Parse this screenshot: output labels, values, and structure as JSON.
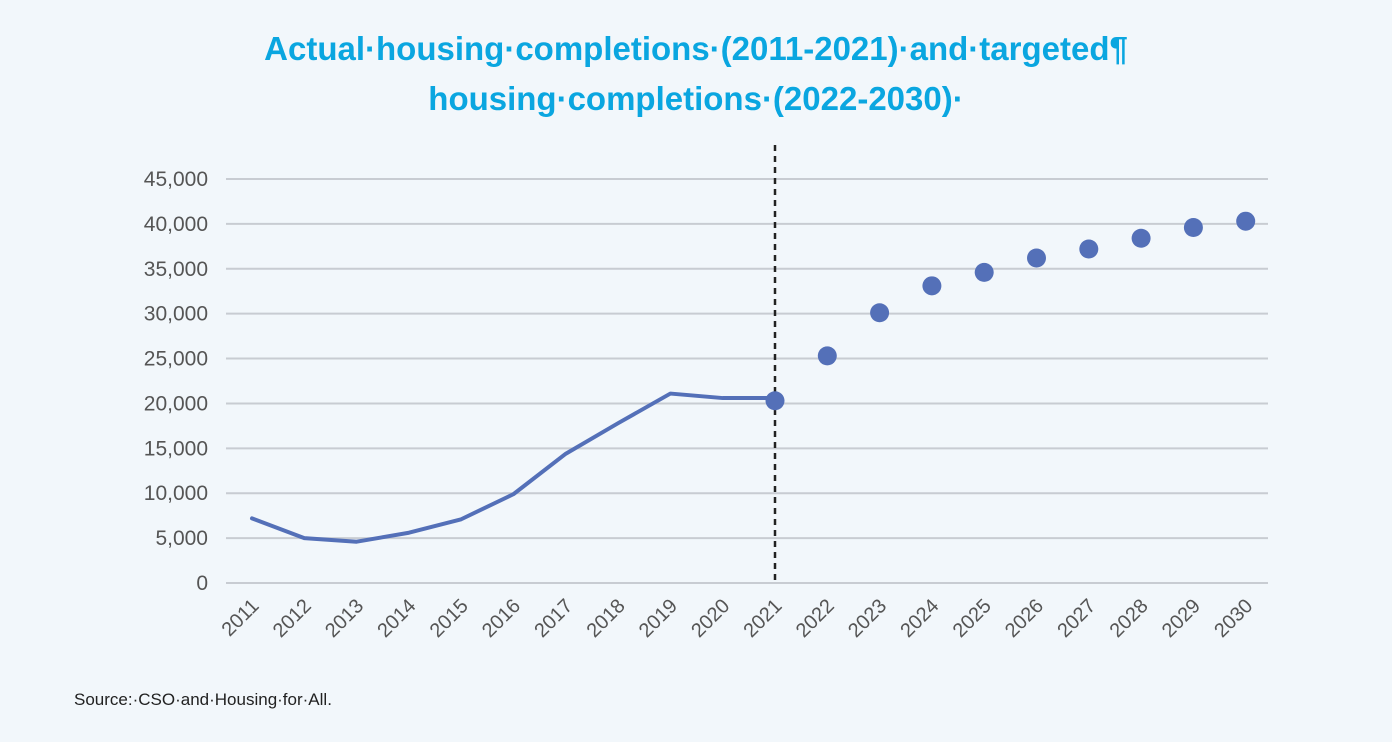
{
  "title_line1": "Actual·housing·completions·(2011-2021)·and·targeted¶",
  "title_line2": "housing·completions·(2022-2030)·",
  "source": "Source:·CSO·and·Housing·for·All.",
  "colors": {
    "title": "#0aa6e0",
    "series": "#5470b8",
    "grid": "#c8ccd2",
    "axis_text": "#555555",
    "divider": "#222222"
  },
  "chart_data": {
    "type": "line",
    "title": "Actual·housing·completions·(2011-2021)·and·targeted¶ housing·completions·(2022-2030)·",
    "xlabel": "",
    "ylabel": "",
    "ylim": [
      0,
      45000
    ],
    "y_ticks": [
      "0",
      "5,000",
      "10,000",
      "15,000",
      "20,000",
      "25,000",
      "30,000",
      "35,000",
      "40,000",
      "45,000"
    ],
    "categories": [
      "2011",
      "2012",
      "2013",
      "2014",
      "2015",
      "2016",
      "2017",
      "2018",
      "2019",
      "2020",
      "2021",
      "2022",
      "2023",
      "2024",
      "2025",
      "2026",
      "2027",
      "2028",
      "2029",
      "2030"
    ],
    "grid": true,
    "legend": "none",
    "divider_after": "2021",
    "series": [
      {
        "style": "line",
        "x": [
          "2011",
          "2012",
          "2013",
          "2014",
          "2015",
          "2016",
          "2017",
          "2018",
          "2019",
          "2020",
          "2021"
        ],
        "values": [
          7200,
          5000,
          4600,
          5600,
          7100,
          9900,
          14400,
          17800,
          21100,
          20600,
          20600
        ]
      },
      {
        "style": "markers",
        "x": [
          "2021",
          "2022",
          "2023",
          "2024",
          "2025",
          "2026",
          "2027",
          "2028",
          "2029",
          "2030"
        ],
        "values": [
          20300,
          25300,
          30100,
          33100,
          34600,
          36200,
          37200,
          38400,
          39600,
          40300
        ]
      }
    ]
  }
}
